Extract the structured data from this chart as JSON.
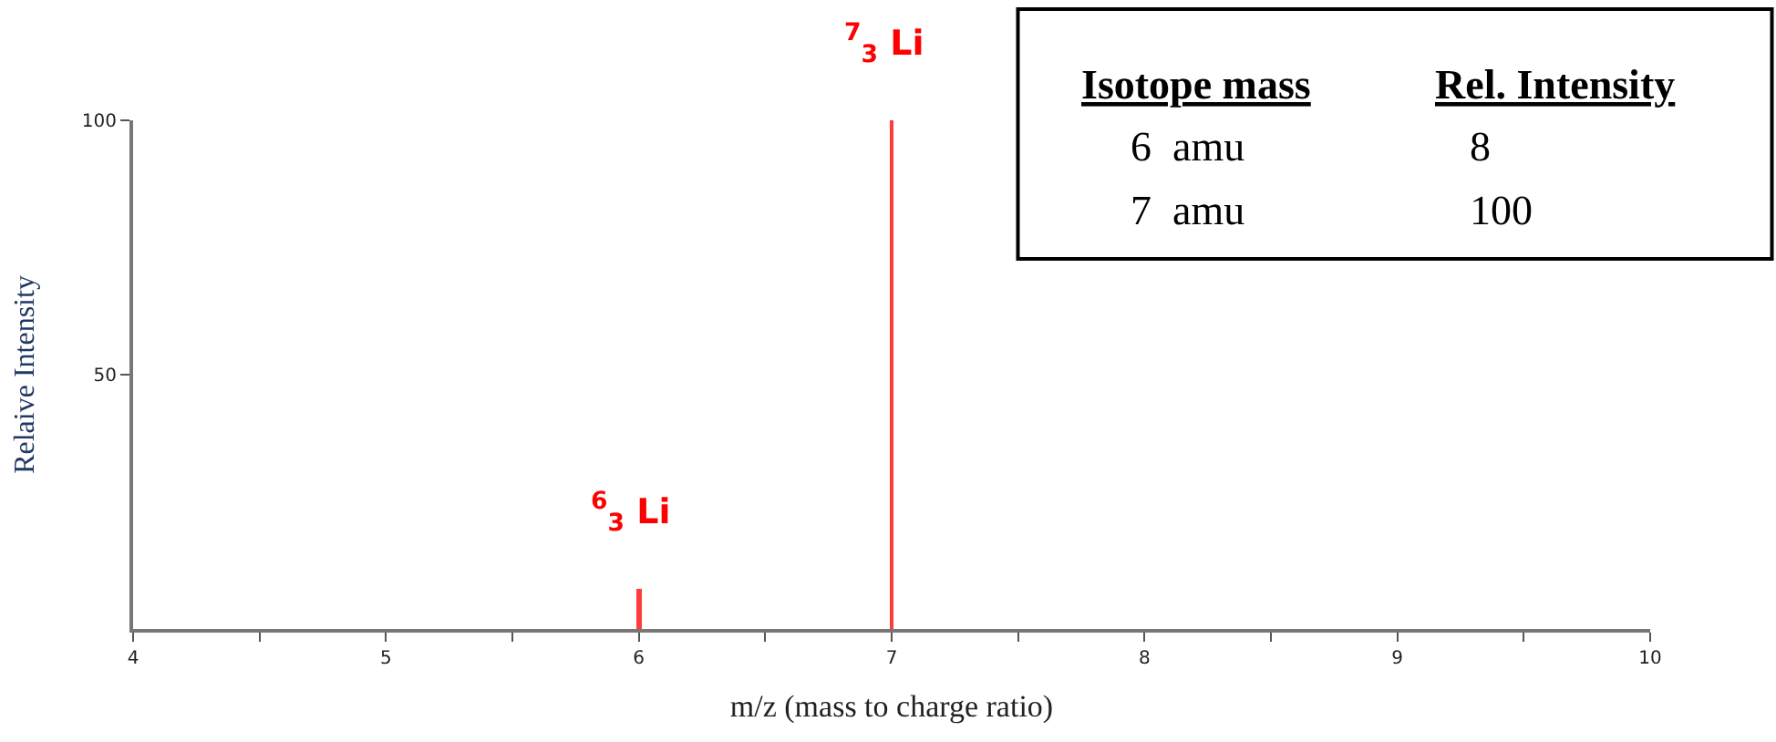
{
  "chart_data": {
    "type": "bar",
    "xlabel": "m/z (mass to charge ratio)",
    "ylabel": "Relaive Intensity",
    "x": [
      6,
      7
    ],
    "series": [
      {
        "color": "#ff3b3b",
        "values": [
          8,
          100
        ]
      }
    ],
    "xlim": [
      4,
      10
    ],
    "xticks": [
      4,
      {
        "value": 4.5,
        "label": null
      },
      5,
      {
        "value": 5.5,
        "label": null
      },
      6,
      {
        "value": 6.5,
        "label": null
      },
      7,
      {
        "value": 7.5,
        "label": null
      },
      8,
      {
        "value": 8.5,
        "label": null
      },
      9,
      {
        "value": 9.5,
        "label": null
      },
      10
    ],
    "ylim": [
      0,
      100
    ],
    "yticks": [
      50,
      100
    ],
    "annotations": [
      {
        "text": "$^{6}$$_{3}$ Li",
        "x": 6,
        "y": 8
      },
      {
        "text": "$^{7}$$_{3}$ Li",
        "x": 7,
        "y": 100
      },
      "Isotope mass",
      "Rel. Intensity",
      "6  amu",
      "8",
      "7  amu",
      "100"
    ]
  }
}
